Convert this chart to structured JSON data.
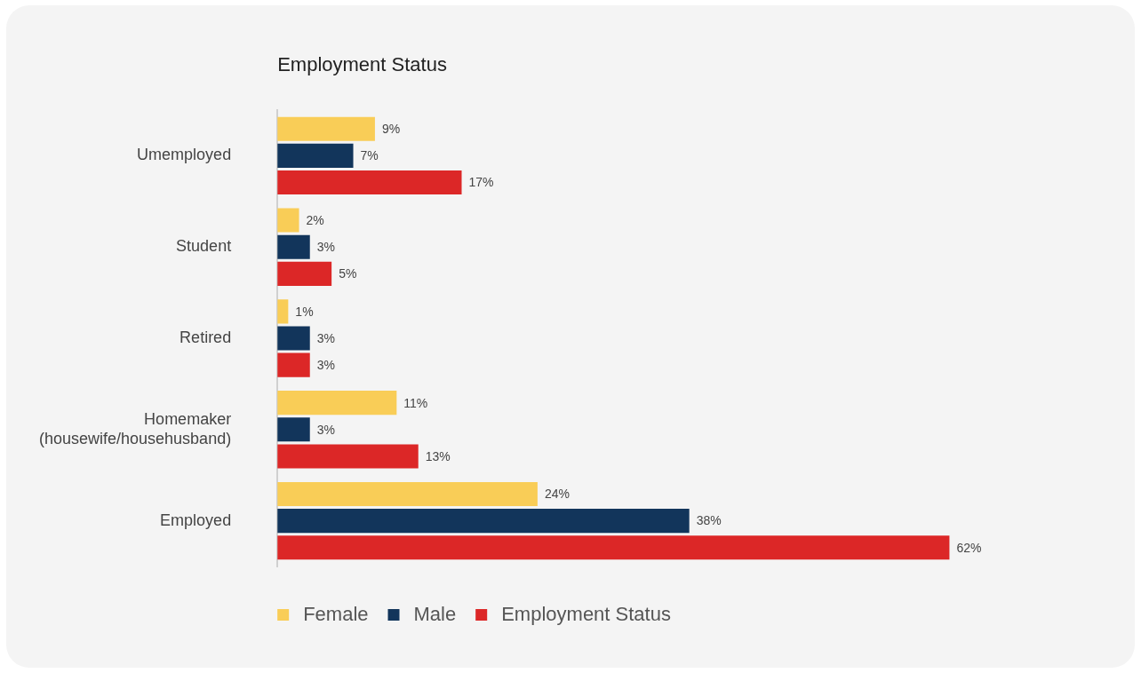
{
  "chart_data": {
    "type": "bar",
    "orientation": "horizontal",
    "title": "Employment Status",
    "categories": [
      "Umemployed",
      "Student",
      "Retired",
      "Homemaker\n(housewife/househusband)",
      "Employed"
    ],
    "series": [
      {
        "name": "Female",
        "color": "#f9cd57",
        "values": [
          9,
          2,
          1,
          11,
          24
        ],
        "value_labels": [
          "9%",
          "2%",
          "1%",
          "11%",
          "24%"
        ]
      },
      {
        "name": "Male",
        "color": "#12355b",
        "values": [
          7,
          3,
          3,
          3,
          38
        ],
        "value_labels": [
          "7%",
          "3%",
          "3%",
          "3%",
          "38%"
        ]
      },
      {
        "name": "Employment Status",
        "color": "#dc2727",
        "values": [
          17,
          5,
          3,
          13,
          62
        ],
        "value_labels": [
          "17%",
          "5%",
          "3%",
          "13%",
          "62%"
        ]
      }
    ],
    "grid": false,
    "legend": "bottom",
    "relative": false
  }
}
